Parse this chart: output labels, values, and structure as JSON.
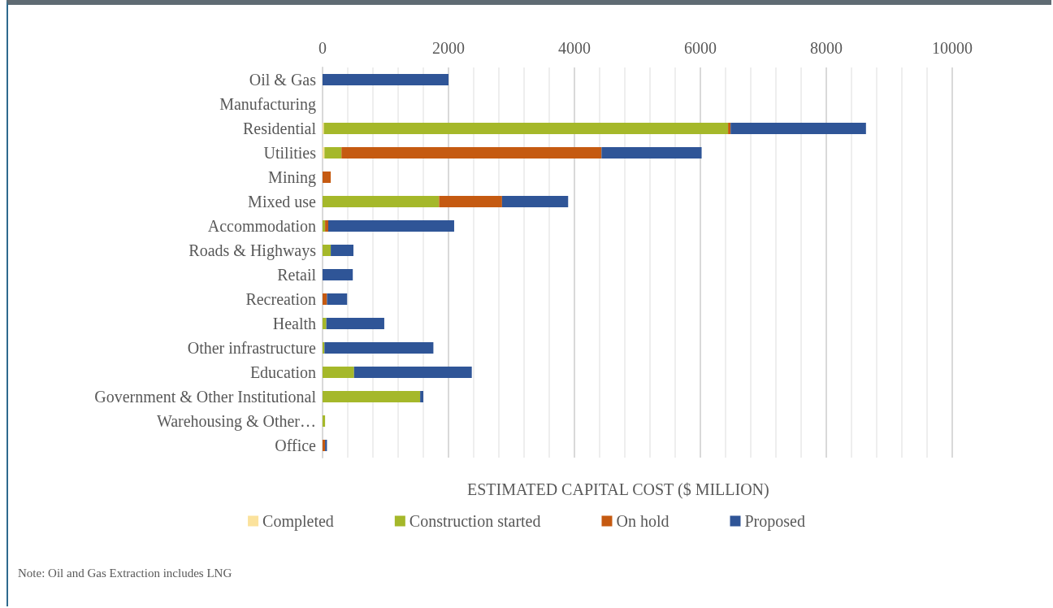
{
  "chart_data": {
    "type": "bar",
    "orientation": "horizontal",
    "stacked": true,
    "xlabel": "ESTIMATED CAPITAL COST ($ MILLION)",
    "categories": [
      "Oil & Gas",
      "Manufacturing",
      "Residential",
      "Utilities",
      "Mining",
      "Mixed use",
      "Accommodation",
      "Roads & Highways",
      "Retail",
      "Recreation",
      "Health",
      "Other infrastructure",
      "Education",
      "Government & Other Institutional",
      "Warehousing & Other…",
      "Office"
    ],
    "series": [
      {
        "name": "Completed",
        "color": "#fbe29c",
        "values": [
          0,
          0,
          20,
          30,
          0,
          0,
          0,
          0,
          0,
          0,
          0,
          0,
          0,
          0,
          0,
          0
        ]
      },
      {
        "name": "Construction started",
        "color": "#a5b82a",
        "values": [
          0,
          0,
          6420,
          270,
          0,
          1850,
          40,
          130,
          0,
          0,
          60,
          30,
          500,
          1550,
          40,
          0
        ]
      },
      {
        "name": "On hold",
        "color": "#c55a11",
        "values": [
          0,
          0,
          40,
          4130,
          130,
          1000,
          50,
          0,
          0,
          70,
          0,
          0,
          0,
          0,
          0,
          40
        ]
      },
      {
        "name": "Proposed",
        "color": "#2f5597",
        "values": [
          2000,
          0,
          2150,
          1590,
          0,
          1050,
          2000,
          360,
          480,
          320,
          920,
          1730,
          1870,
          50,
          0,
          30
        ]
      }
    ],
    "xlim": [
      0,
      10000
    ],
    "xticks": [
      0,
      2000,
      4000,
      6000,
      8000,
      10000
    ],
    "grid": "x",
    "legend": "bottom",
    "annotations": [
      "Note: Oil and Gas Extraction includes LNG"
    ]
  }
}
